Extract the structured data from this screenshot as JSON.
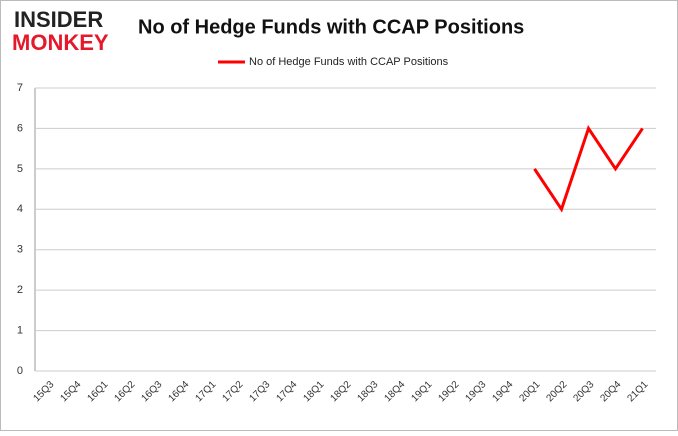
{
  "logo": [
    "INSIDER",
    "MONKEY"
  ],
  "chart_data": {
    "type": "line",
    "title": "No of Hedge Funds with CCAP Positions",
    "categories": [
      "15Q3",
      "15Q4",
      "16Q1",
      "16Q2",
      "16Q3",
      "16Q4",
      "17Q1",
      "17Q2",
      "17Q3",
      "17Q4",
      "18Q1",
      "18Q2",
      "18Q3",
      "18Q4",
      "19Q1",
      "19Q2",
      "19Q3",
      "19Q4",
      "20Q1",
      "20Q2",
      "20Q3",
      "20Q4",
      "21Q1"
    ],
    "series": [
      {
        "name": "No of Hedge Funds with CCAP Positions",
        "color": "#ff0000",
        "values": [
          null,
          null,
          null,
          null,
          null,
          null,
          null,
          null,
          null,
          null,
          null,
          null,
          null,
          null,
          null,
          null,
          null,
          null,
          5,
          4,
          6,
          5,
          6
        ]
      }
    ],
    "ylim": [
      0,
      7
    ],
    "yticks": [
      0,
      1,
      2,
      3,
      4,
      5,
      6,
      7
    ],
    "grid": true,
    "legend": "top"
  }
}
